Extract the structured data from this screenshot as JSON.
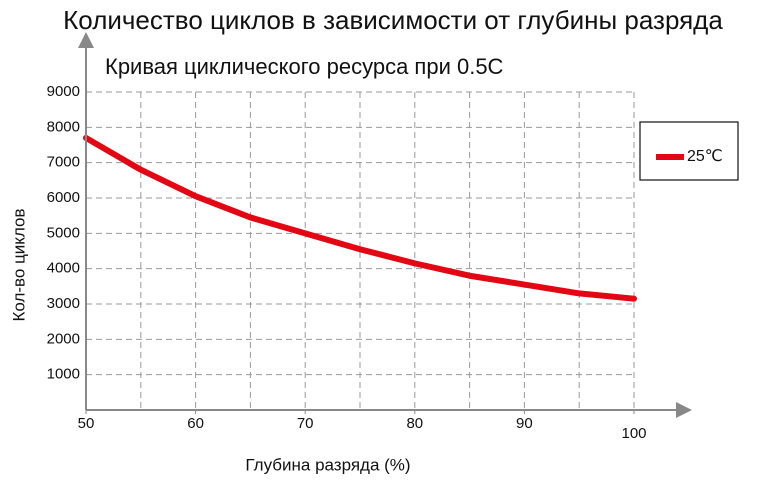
{
  "chart_data": {
    "type": "line",
    "title": "Количество циклов в зависимости от глубины разряда",
    "subtitle": "Кривая циклического ресурса при 0.5C",
    "x_label": "Глубина разряда  (%)",
    "y_label": "Кол-во  циклов",
    "x": [
      50,
      55,
      60,
      65,
      70,
      75,
      80,
      85,
      90,
      95,
      100
    ],
    "series": [
      {
        "name": "25℃",
        "color": "#e30613",
        "values": [
          7700,
          6800,
          6050,
          5450,
          5000,
          4550,
          4150,
          3800,
          3550,
          3300,
          3150
        ]
      }
    ],
    "xlim": [
      50,
      100
    ],
    "xticks": [
      50,
      60,
      70,
      80,
      90,
      100
    ],
    "xgrid": [
      55,
      60,
      65,
      70,
      75,
      80,
      85,
      90,
      95,
      100
    ],
    "ylim": [
      0,
      9000
    ],
    "yticks": [
      1000,
      2000,
      3000,
      4000,
      5000,
      6000,
      7000,
      8000,
      9000
    ],
    "grid": true,
    "legend": "right"
  }
}
